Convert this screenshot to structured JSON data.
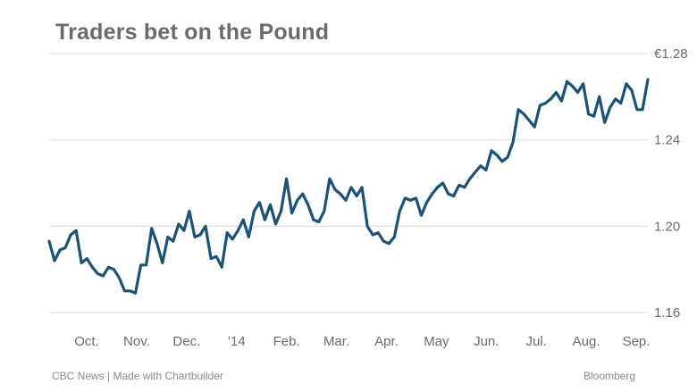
{
  "chart_data": {
    "type": "line",
    "title": "Traders bet on the Pound",
    "xlabel": "",
    "ylabel": "",
    "ylim": [
      1.16,
      1.28
    ],
    "yticks": [
      {
        "value": 1.28,
        "label": "€1.28"
      },
      {
        "value": 1.24,
        "label": "1.24"
      },
      {
        "value": 1.2,
        "label": "1.20"
      },
      {
        "value": 1.16,
        "label": "1.16"
      }
    ],
    "xticks": [
      "Oct.",
      "Nov.",
      "Dec.",
      "’14",
      "Feb.",
      "Mar.",
      "Apr.",
      "May",
      "Jun.",
      "Jul.",
      "Aug.",
      "Sep."
    ],
    "grid": true,
    "line_color": "#1b5276",
    "series": [
      {
        "values": [
          1.193,
          1.184,
          1.189,
          1.19,
          1.196,
          1.198,
          1.183,
          1.185,
          1.181,
          1.178,
          1.177,
          1.181,
          1.18,
          1.176,
          1.17,
          1.17,
          1.169,
          1.182,
          1.182,
          1.199,
          1.192,
          1.183,
          1.195,
          1.193,
          1.201,
          1.198,
          1.207,
          1.195,
          1.196,
          1.2,
          1.185,
          1.186,
          1.181,
          1.197,
          1.194,
          1.198,
          1.203,
          1.195,
          1.207,
          1.211,
          1.203,
          1.21,
          1.201,
          1.207,
          1.222,
          1.206,
          1.212,
          1.215,
          1.21,
          1.203,
          1.202,
          1.207,
          1.222,
          1.217,
          1.215,
          1.212,
          1.218,
          1.214,
          1.218,
          1.2,
          1.196,
          1.197,
          1.193,
          1.192,
          1.195,
          1.207,
          1.213,
          1.212,
          1.213,
          1.205,
          1.211,
          1.215,
          1.218,
          1.22,
          1.215,
          1.214,
          1.219,
          1.218,
          1.222,
          1.225,
          1.228,
          1.226,
          1.235,
          1.233,
          1.23,
          1.232,
          1.239,
          1.254,
          1.252,
          1.249,
          1.246,
          1.256,
          1.257,
          1.259,
          1.262,
          1.258,
          1.267,
          1.265,
          1.262,
          1.266,
          1.252,
          1.251,
          1.26,
          1.248,
          1.255,
          1.259,
          1.257,
          1.266,
          1.263,
          1.254,
          1.254,
          1.268
        ]
      }
    ]
  },
  "footer": {
    "left": "CBC News | Made with Chartbuilder",
    "right": "Bloomberg"
  }
}
